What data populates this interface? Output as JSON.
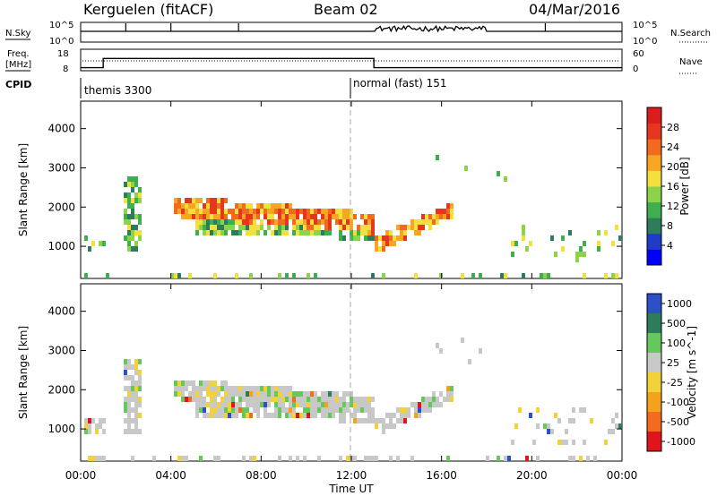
{
  "header": {
    "station": "Kerguelen (fitACF)",
    "beam": "Beam 02",
    "date": "04/Mar/2016"
  },
  "top_panels": {
    "nsky_label": "N.Sky",
    "nsearch_label": "N.Search",
    "nsky_ticks": [
      "10^5",
      "10^0"
    ],
    "nsearch_ticks": [
      "10^5",
      "10^0"
    ],
    "freq_label_1": "Freq.",
    "freq_label_2": "[MHz]",
    "freq_ticks": [
      "18",
      "8"
    ],
    "nave_label": "Nave",
    "nave_ticks": [
      "60",
      "0"
    ],
    "cpid_label": "CPID",
    "cpid_1": "themis 3300",
    "cpid_2": "normal (fast) 151"
  },
  "colors": {
    "power_scale": [
      "#0000ff",
      "#1e3cc8",
      "#2e7d5a",
      "#3fae4f",
      "#8bd34a",
      "#f4e03c",
      "#f6a623",
      "#f26a1e",
      "#e7361e",
      "#dc1c1c"
    ],
    "velocity_scale": [
      "#2c50c8",
      "#2e7d5a",
      "#66c75a",
      "#c8c8c8",
      "#f2d13a",
      "#f4a21e",
      "#f26b1e",
      "#e0141a"
    ]
  },
  "chart_data": [
    {
      "type": "heatmap",
      "name": "Power panel",
      "xlabel": "Time UT",
      "ylabel": "Slant Range [km]",
      "x_ticks": [
        "00:00",
        "04:00",
        "08:00",
        "12:00",
        "16:00",
        "20:00",
        "00:00"
      ],
      "y_ticks": [
        1000,
        2000,
        3000,
        4000
      ],
      "ylim": [
        180,
        4700
      ],
      "colorbar_label": "Power [dB]",
      "colorbar_ticks": [
        4,
        8,
        12,
        16,
        20,
        24,
        28
      ]
    },
    {
      "type": "heatmap",
      "name": "Velocity panel",
      "xlabel": "Time UT",
      "ylabel": "Slant Range [km]",
      "x_ticks": [
        "00:00",
        "04:00",
        "08:00",
        "12:00",
        "16:00",
        "20:00",
        "00:00"
      ],
      "y_ticks": [
        1000,
        2000,
        3000,
        4000
      ],
      "ylim": [
        180,
        4700
      ],
      "colorbar_label": "Velocity [m s^-1]",
      "colorbar_ticks": [
        1000,
        500,
        100,
        25,
        -25,
        -100,
        -500,
        -1000
      ]
    }
  ],
  "series": {
    "nsky_base": 0.2,
    "nsearch_base": 0.2,
    "freq_segments": [
      {
        "start_h": 0,
        "end_h": 1.0,
        "val": 8
      },
      {
        "start_h": 1.0,
        "end_h": 13.0,
        "val": 14
      },
      {
        "start_h": 13.0,
        "end_h": 24,
        "val": 8
      }
    ],
    "nave_dotted_level": 0.5
  }
}
